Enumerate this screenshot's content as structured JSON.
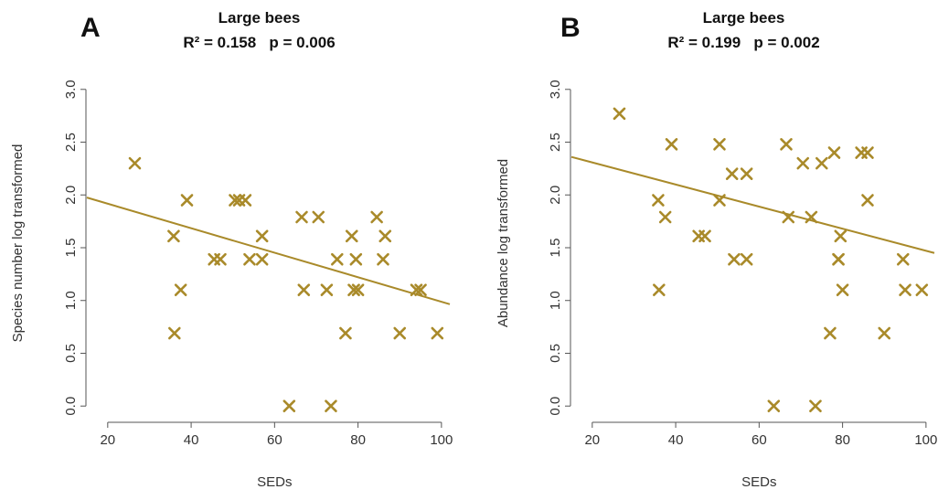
{
  "colors": {
    "marker": "#a98a2a",
    "fit_line": "#a98a2a",
    "axis": "#555555"
  },
  "chart_data": [
    {
      "type": "scatter",
      "panel": "A",
      "title": "Large bees",
      "subtitle": "R² = 0.158   p = 0.006",
      "xlabel": "SEDs",
      "ylabel": "Species number log transformed",
      "xlim": [
        15,
        102
      ],
      "ylim": [
        -0.05,
        3.05
      ],
      "xticks": [
        20,
        40,
        60,
        80,
        100
      ],
      "yticks": [
        0.0,
        0.5,
        1.0,
        1.5,
        2.0,
        2.5,
        3.0
      ],
      "ytick_labels": [
        "0.0",
        "0.5",
        "1.0",
        "1.5",
        "2.0",
        "2.5",
        "3.0"
      ],
      "marker": "x",
      "points": [
        [
          26.5,
          2.3
        ],
        [
          35.8,
          1.61
        ],
        [
          36.0,
          0.69
        ],
        [
          37.5,
          1.1
        ],
        [
          39.0,
          1.95
        ],
        [
          45.5,
          1.39
        ],
        [
          47.0,
          1.39
        ],
        [
          50.5,
          1.95
        ],
        [
          51.5,
          1.95
        ],
        [
          53.0,
          1.95
        ],
        [
          54.0,
          1.39
        ],
        [
          57.0,
          1.61
        ],
        [
          57.0,
          1.39
        ],
        [
          63.5,
          0.0
        ],
        [
          66.5,
          1.79
        ],
        [
          67.0,
          1.1
        ],
        [
          70.5,
          1.79
        ],
        [
          72.5,
          1.1
        ],
        [
          73.5,
          0.0
        ],
        [
          75.0,
          1.39
        ],
        [
          77.0,
          0.69
        ],
        [
          78.5,
          1.61
        ],
        [
          79.0,
          1.1
        ],
        [
          79.5,
          1.39
        ],
        [
          80.0,
          1.1
        ],
        [
          84.5,
          1.79
        ],
        [
          86.0,
          1.39
        ],
        [
          86.5,
          1.61
        ],
        [
          90.0,
          0.69
        ],
        [
          94.0,
          1.1
        ],
        [
          95.0,
          1.1
        ],
        [
          99.0,
          0.69
        ]
      ],
      "fit_line": {
        "x": [
          15,
          102
        ],
        "y": [
          1.975,
          0.965
        ]
      }
    },
    {
      "type": "scatter",
      "panel": "B",
      "title": "Large bees",
      "subtitle": "R² = 0.199   p = 0.002",
      "xlabel": "SEDs",
      "ylabel": "Abundance log transformed",
      "xlim": [
        15,
        102
      ],
      "ylim": [
        -0.05,
        3.05
      ],
      "xticks": [
        20,
        40,
        60,
        80,
        100
      ],
      "yticks": [
        0.0,
        0.5,
        1.0,
        1.5,
        2.0,
        2.5,
        3.0
      ],
      "ytick_labels": [
        "0.0",
        "0.5",
        "1.0",
        "1.5",
        "2.0",
        "2.5",
        "3.0"
      ],
      "marker": "x",
      "points": [
        [
          26.5,
          2.77
        ],
        [
          35.8,
          1.95
        ],
        [
          36.0,
          1.1
        ],
        [
          37.5,
          1.79
        ],
        [
          39.0,
          2.48
        ],
        [
          45.5,
          1.61
        ],
        [
          47.0,
          1.61
        ],
        [
          50.5,
          2.48
        ],
        [
          50.5,
          1.95
        ],
        [
          53.5,
          2.2
        ],
        [
          54.0,
          1.39
        ],
        [
          57.0,
          2.2
        ],
        [
          57.0,
          1.39
        ],
        [
          63.5,
          0.0
        ],
        [
          66.5,
          2.48
        ],
        [
          67.0,
          1.79
        ],
        [
          70.5,
          2.3
        ],
        [
          72.5,
          1.79
        ],
        [
          73.5,
          0.0
        ],
        [
          75.0,
          2.3
        ],
        [
          77.0,
          0.69
        ],
        [
          78.0,
          2.4
        ],
        [
          79.0,
          1.39
        ],
        [
          79.0,
          1.39
        ],
        [
          79.5,
          1.61
        ],
        [
          80.0,
          1.1
        ],
        [
          84.5,
          2.4
        ],
        [
          86.0,
          2.4
        ],
        [
          86.0,
          1.95
        ],
        [
          90.0,
          0.69
        ],
        [
          94.5,
          1.39
        ],
        [
          95.0,
          1.1
        ],
        [
          99.0,
          1.1
        ]
      ],
      "fit_line": {
        "x": [
          15,
          102
        ],
        "y": [
          2.36,
          1.45
        ]
      }
    }
  ]
}
